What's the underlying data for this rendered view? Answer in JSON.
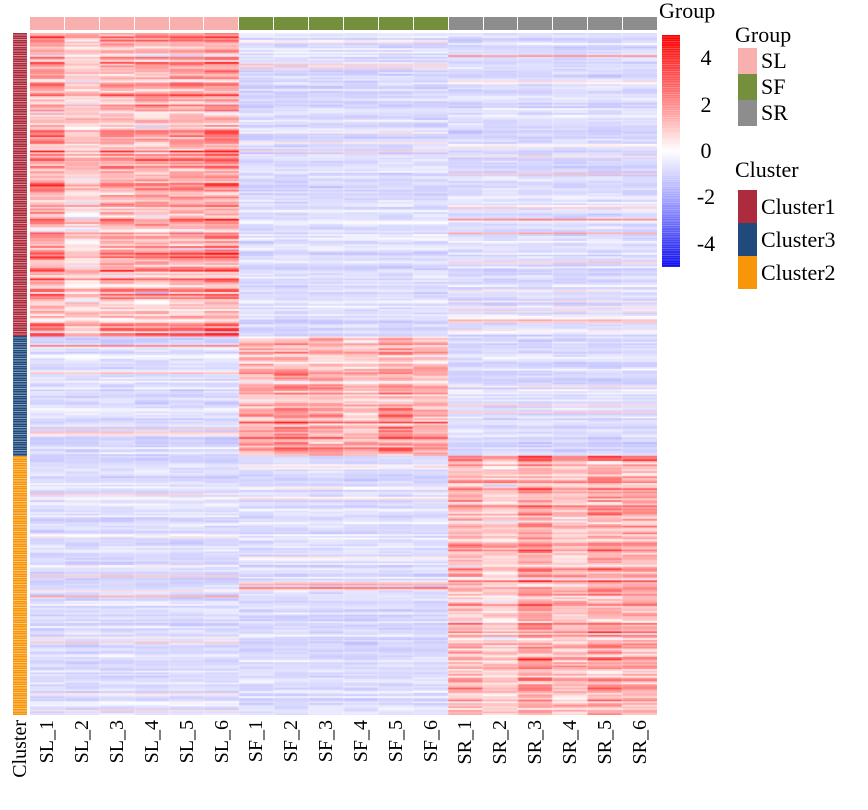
{
  "annotation_bar": {
    "top_title": "Group",
    "left_title": "Cluster"
  },
  "legends": {
    "group": {
      "title": "Group",
      "items": [
        {
          "label": "SL",
          "color": "#f8b0ae"
        },
        {
          "label": "SF",
          "color": "#74903d"
        },
        {
          "label": "SR",
          "color": "#8d8d8d"
        }
      ]
    },
    "cluster": {
      "title": "Cluster",
      "items": [
        {
          "label": "Cluster1",
          "color": "#ac2c3e"
        },
        {
          "label": "Cluster3",
          "color": "#204a7c"
        },
        {
          "label": "Cluster2",
          "color": "#f8960a"
        }
      ]
    }
  },
  "chart_data": {
    "type": "heatmap",
    "title": "",
    "columns": [
      "SL_1",
      "SL_2",
      "SL_3",
      "SL_4",
      "SL_5",
      "SL_6",
      "SF_1",
      "SF_2",
      "SF_3",
      "SF_4",
      "SF_5",
      "SF_6",
      "SR_1",
      "SR_2",
      "SR_3",
      "SR_4",
      "SR_5",
      "SR_6"
    ],
    "column_groups": [
      {
        "name": "SL",
        "color": "#f8b0ae",
        "columns": [
          "SL_1",
          "SL_2",
          "SL_3",
          "SL_4",
          "SL_5",
          "SL_6"
        ]
      },
      {
        "name": "SF",
        "color": "#74903d",
        "columns": [
          "SF_1",
          "SF_2",
          "SF_3",
          "SF_4",
          "SF_5",
          "SF_6"
        ]
      },
      {
        "name": "SR",
        "color": "#8d8d8d",
        "columns": [
          "SR_1",
          "SR_2",
          "SR_3",
          "SR_4",
          "SR_5",
          "SR_6"
        ]
      }
    ],
    "row_clusters": [
      {
        "name": "Cluster1",
        "color": "#ac2c3e",
        "n_rows": 178,
        "high_in": "SL",
        "block_means": {
          "SL": 1.9,
          "SF": -0.65,
          "SR": -0.65
        }
      },
      {
        "name": "Cluster3",
        "color": "#204a7c",
        "n_rows": 70,
        "high_in": "SF",
        "block_means": {
          "SL": -0.65,
          "SF": 1.9,
          "SR": -0.65
        }
      },
      {
        "name": "Cluster2",
        "color": "#f8960a",
        "n_rows": 152,
        "high_in": "SR",
        "block_means": {
          "SL": -0.65,
          "SF": -0.65,
          "SR": 1.8
        }
      }
    ],
    "column_intensity": {
      "SL": [
        1.05,
        0.55,
        0.95,
        0.92,
        1.0,
        1.15
      ],
      "SF": [
        0.85,
        1.15,
        1.0,
        0.8,
        1.1,
        0.85
      ],
      "SR": [
        0.95,
        0.65,
        1.15,
        0.8,
        1.1,
        1.0
      ]
    },
    "scale": {
      "min": -5,
      "max": 5,
      "ticks": [
        4,
        2,
        0,
        -2,
        -4
      ],
      "colors_low_mid_high": [
        "#0000ff",
        "#ffffff",
        "#ff0000"
      ]
    },
    "legend_position": "right",
    "grid": false,
    "seed": 42,
    "cell_noise_sd": 0.5
  }
}
